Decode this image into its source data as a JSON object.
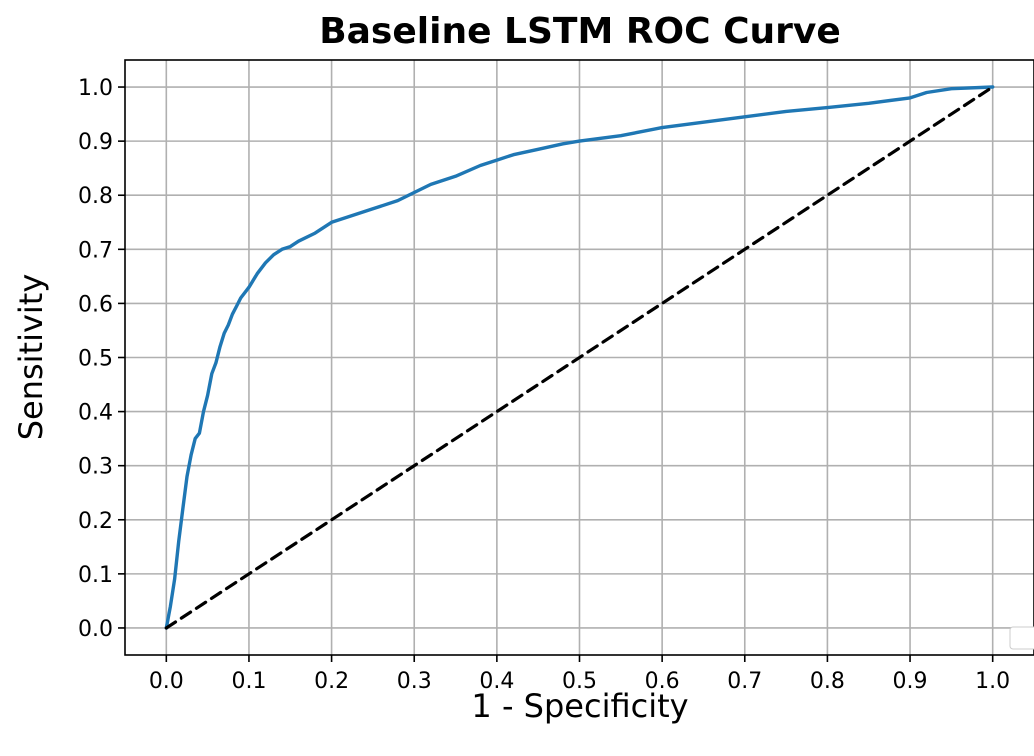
{
  "colors": {
    "roc_curve": "#1f77b4",
    "reference_line": "#000000",
    "grid": "#b0b0b0",
    "axes": "#000000",
    "background": "#ffffff"
  },
  "chart_data": {
    "type": "line",
    "title": "Baseline LSTM ROC Curve",
    "xlabel": "1 - Specificity",
    "ylabel": "Sensitivity",
    "xlim": [
      -0.05,
      1.05
    ],
    "ylim": [
      -0.05,
      1.05
    ],
    "x_ticks": [
      0.0,
      0.1,
      0.2,
      0.3,
      0.4,
      0.5,
      0.6,
      0.7,
      0.8,
      0.9,
      1.0
    ],
    "y_ticks": [
      0.0,
      0.1,
      0.2,
      0.3,
      0.4,
      0.5,
      0.6,
      0.7,
      0.8,
      0.9,
      1.0
    ],
    "x_tick_labels": [
      "0.0",
      "0.1",
      "0.2",
      "0.3",
      "0.4",
      "0.5",
      "0.6",
      "0.7",
      "0.8",
      "0.9",
      "1.0"
    ],
    "y_tick_labels": [
      "0.0",
      "0.1",
      "0.2",
      "0.3",
      "0.4",
      "0.5",
      "0.6",
      "0.7",
      "0.8",
      "0.9",
      "1.0"
    ],
    "grid": true,
    "legend": "bottom-right (empty)",
    "series": [
      {
        "style": "solid",
        "color": "#1f77b4",
        "x": [
          0.0,
          0.005,
          0.01,
          0.015,
          0.02,
          0.025,
          0.03,
          0.035,
          0.04,
          0.045,
          0.05,
          0.055,
          0.06,
          0.065,
          0.07,
          0.075,
          0.08,
          0.085,
          0.09,
          0.1,
          0.11,
          0.12,
          0.13,
          0.14,
          0.15,
          0.16,
          0.18,
          0.2,
          0.22,
          0.25,
          0.28,
          0.3,
          0.32,
          0.35,
          0.38,
          0.4,
          0.42,
          0.45,
          0.48,
          0.5,
          0.55,
          0.6,
          0.65,
          0.7,
          0.75,
          0.8,
          0.85,
          0.9,
          0.92,
          0.95,
          1.0
        ],
        "y": [
          0.0,
          0.04,
          0.09,
          0.16,
          0.22,
          0.28,
          0.32,
          0.35,
          0.36,
          0.4,
          0.43,
          0.47,
          0.49,
          0.52,
          0.545,
          0.56,
          0.58,
          0.595,
          0.61,
          0.63,
          0.655,
          0.675,
          0.69,
          0.7,
          0.705,
          0.715,
          0.73,
          0.75,
          0.76,
          0.775,
          0.79,
          0.805,
          0.82,
          0.835,
          0.855,
          0.865,
          0.875,
          0.885,
          0.895,
          0.9,
          0.91,
          0.925,
          0.935,
          0.945,
          0.955,
          0.962,
          0.97,
          0.98,
          0.99,
          0.997,
          1.0
        ]
      },
      {
        "style": "dashed",
        "color": "#000000",
        "x": [
          0.0,
          1.0
        ],
        "y": [
          0.0,
          1.0
        ]
      }
    ]
  }
}
